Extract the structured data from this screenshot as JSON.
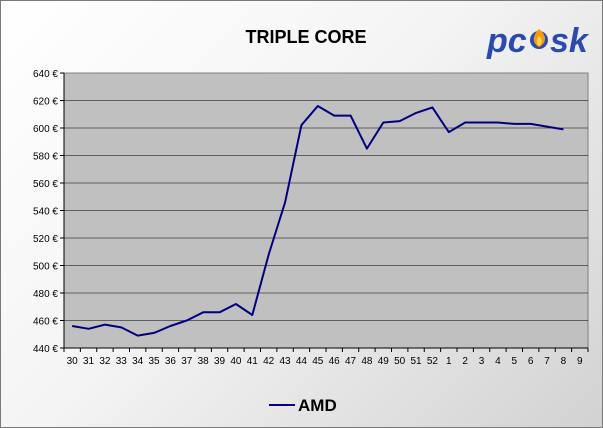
{
  "logo": {
    "text": "pcsk",
    "primary_color": "#2b4ab0",
    "flame_color": "#f39c12"
  },
  "chart_data": {
    "type": "line",
    "title": "TRIPLE CORE",
    "xlabel": "",
    "ylabel": "",
    "ylim": [
      440,
      640
    ],
    "y_ticks": [
      440,
      460,
      480,
      500,
      520,
      540,
      560,
      580,
      600,
      620,
      640
    ],
    "y_tick_labels": [
      "440 €",
      "460 €",
      "480 €",
      "500 €",
      "520 €",
      "540 €",
      "560 €",
      "580 €",
      "600 €",
      "620 €",
      "640 €"
    ],
    "categories": [
      "30",
      "31",
      "32",
      "33",
      "34",
      "35",
      "36",
      "37",
      "38",
      "39",
      "40",
      "41",
      "42",
      "43",
      "44",
      "45",
      "46",
      "47",
      "48",
      "49",
      "50",
      "51",
      "52",
      "1",
      "2",
      "3",
      "4",
      "5",
      "6",
      "7",
      "8",
      "9"
    ],
    "series": [
      {
        "name": "AMD",
        "color": "#000080",
        "values": [
          456,
          454,
          457,
          455,
          449,
          451,
          456,
          460,
          466,
          466,
          472,
          464,
          508,
          546,
          602,
          616,
          609,
          609,
          585,
          604,
          605,
          611,
          615,
          597,
          604,
          604,
          604,
          603,
          603,
          601,
          599,
          null
        ]
      }
    ],
    "grid": true,
    "plot_background": "#c0c0c0",
    "legend_position": "bottom-center"
  }
}
